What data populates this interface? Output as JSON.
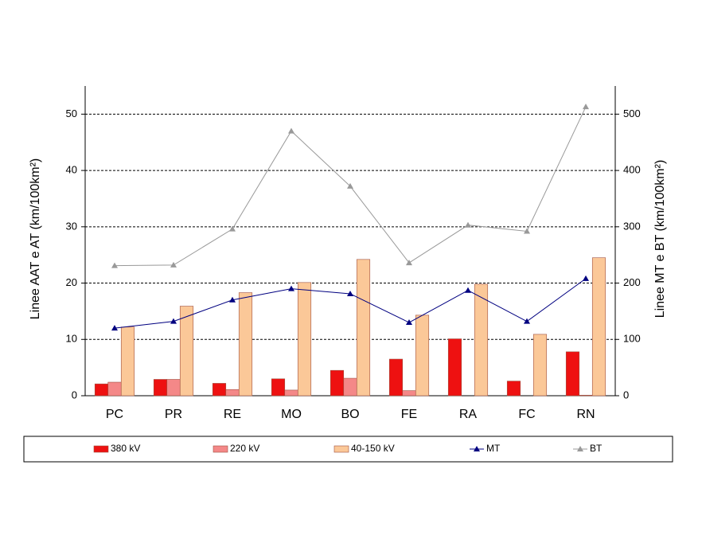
{
  "chart_data": {
    "type": "bar",
    "y_label": "Linee AAT e AT (km/100km²)",
    "y2_label": "Linee MT e BT (km/100km²)",
    "categories": [
      "PC",
      "PR",
      "RE",
      "MO",
      "BO",
      "FE",
      "RA",
      "FC",
      "RN"
    ],
    "series": [
      {
        "name": "380 kV",
        "type": "bar",
        "color": "#ee1111",
        "values": [
          2.1,
          2.9,
          2.2,
          3.0,
          4.5,
          6.5,
          10.1,
          2.6,
          7.8
        ]
      },
      {
        "name": "220 kV",
        "type": "bar",
        "color": "#f48888",
        "values": [
          2.4,
          2.9,
          1.1,
          1.0,
          3.1,
          0.9,
          0,
          0,
          0.1
        ]
      },
      {
        "name": "40-150 kV",
        "type": "bar",
        "color": "#fbc898",
        "values": [
          12.2,
          15.9,
          18.3,
          20.1,
          24.2,
          14.3,
          19.8,
          10.9,
          24.5
        ]
      },
      {
        "name": "MT",
        "type": "line",
        "axis": "y2",
        "color": "#000080",
        "values": [
          120,
          132,
          170,
          190,
          181,
          130,
          187,
          132,
          208
        ]
      },
      {
        "name": "BT",
        "type": "line",
        "axis": "y2",
        "color": "#999999",
        "values": [
          231,
          232,
          296,
          470,
          372,
          236,
          303,
          292,
          513
        ]
      }
    ],
    "ylim": [
      0,
      55
    ],
    "yticks": [
      0,
      10,
      20,
      30,
      40,
      50
    ],
    "y2lim": [
      0,
      550
    ],
    "y2ticks": [
      0,
      100,
      200,
      300,
      400,
      500
    ],
    "grid": true,
    "legend": "bottom"
  }
}
